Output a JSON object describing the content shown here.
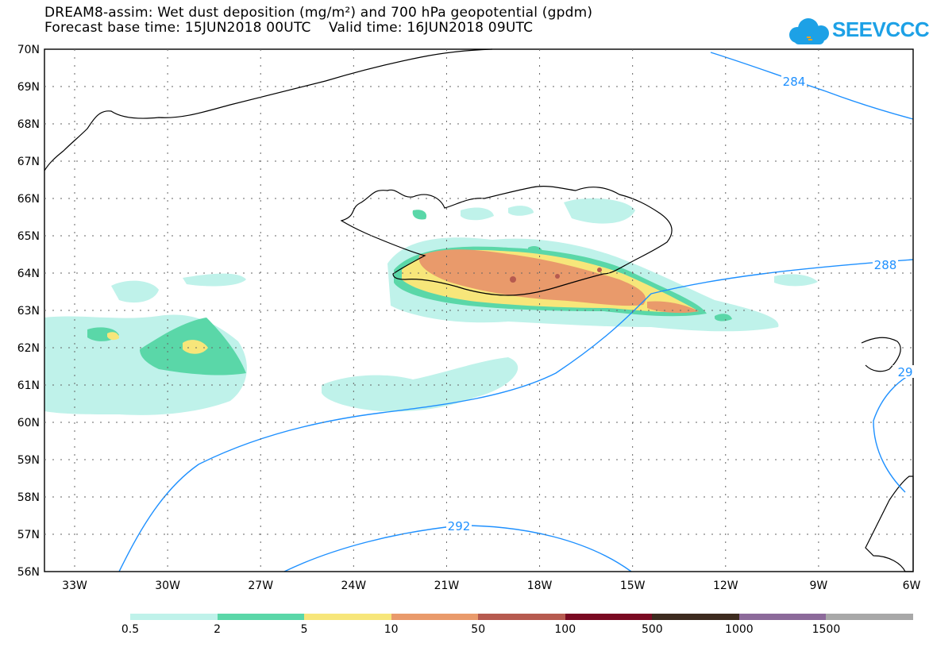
{
  "header": {
    "title": "DREAM8-assim: Wet dust deposition (mg/m²) and 700 hPa geopotential (gpdm)",
    "subtitle": "Forecast base time: 15JUN2018 00UTC    Valid time: 16JUN2018 09UTC"
  },
  "logo": {
    "text": "SEEVCCC",
    "color": "#1da1e6"
  },
  "map": {
    "lat_labels": [
      "70N",
      "69N",
      "68N",
      "67N",
      "66N",
      "65N",
      "64N",
      "63N",
      "62N",
      "61N",
      "60N",
      "59N",
      "58N",
      "57N",
      "56N"
    ],
    "lon_labels": [
      "33W",
      "30W",
      "27W",
      "24W",
      "21W",
      "18W",
      "15W",
      "12W",
      "9W",
      "6W"
    ],
    "contour_labels": [
      "284",
      "288",
      "292",
      "29"
    ],
    "contour_color": "#1e90ff"
  },
  "legend": {
    "colors": [
      "#bff2ea",
      "#5ad7a8",
      "#f7e67a",
      "#e99a6b",
      "#b65a4f",
      "#7a0a22",
      "#3d2b1f",
      "#8c6a9a",
      "#a8a8a8"
    ],
    "labels": [
      "0.5",
      "2",
      "5",
      "10",
      "50",
      "100",
      "500",
      "1000",
      "1500"
    ]
  }
}
